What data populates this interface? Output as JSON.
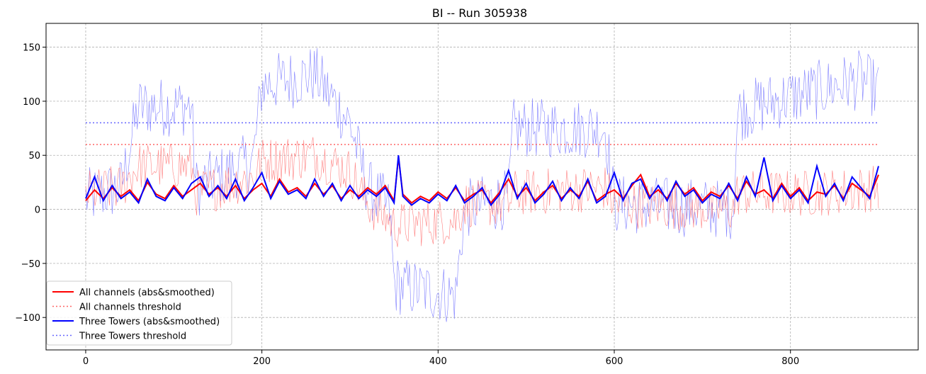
{
  "chart_data": {
    "type": "line",
    "title": "BI -- Run 305938",
    "xlabel": "",
    "ylabel": "",
    "xlim": [
      -45,
      945
    ],
    "ylim": [
      -130,
      172
    ],
    "xticks": [
      0,
      200,
      400,
      600,
      800
    ],
    "yticks": [
      -100,
      -50,
      0,
      50,
      100,
      150
    ],
    "xtick_labels": [
      "0",
      "200",
      "400",
      "600",
      "800"
    ],
    "ytick_labels": [
      "−100",
      "−50",
      "0",
      "50",
      "100",
      "150"
    ],
    "grid": true,
    "legend_position": "lower-left",
    "colors": {
      "all": "#ff0000",
      "all_threshold": "#ff6666",
      "towers": "#0000ff",
      "towers_threshold": "#6666ff",
      "raw_all": "#ff8080",
      "raw_towers": "#8080ff"
    },
    "series": [
      {
        "name": "All channels (abs&smoothed)",
        "style": "solid",
        "x": [
          0,
          10,
          20,
          30,
          40,
          50,
          60,
          70,
          80,
          90,
          100,
          110,
          120,
          130,
          140,
          150,
          160,
          170,
          180,
          190,
          200,
          210,
          220,
          230,
          240,
          250,
          260,
          270,
          280,
          290,
          300,
          310,
          320,
          330,
          340,
          350,
          355,
          360,
          370,
          380,
          390,
          400,
          410,
          420,
          430,
          440,
          450,
          460,
          470,
          480,
          490,
          500,
          510,
          520,
          530,
          540,
          550,
          560,
          570,
          580,
          590,
          600,
          610,
          620,
          630,
          640,
          650,
          660,
          670,
          680,
          690,
          700,
          710,
          720,
          730,
          740,
          750,
          760,
          770,
          780,
          790,
          800,
          810,
          820,
          830,
          840,
          850,
          860,
          870,
          880,
          890,
          900
        ],
        "y": [
          8,
          18,
          10,
          20,
          12,
          18,
          8,
          25,
          14,
          10,
          22,
          12,
          18,
          24,
          14,
          20,
          12,
          22,
          10,
          18,
          24,
          12,
          28,
          16,
          20,
          12,
          24,
          14,
          22,
          10,
          18,
          12,
          20,
          14,
          22,
          8,
          48,
          14,
          6,
          12,
          8,
          16,
          10,
          20,
          8,
          14,
          18,
          6,
          16,
          28,
          12,
          20,
          8,
          16,
          22,
          10,
          18,
          12,
          26,
          8,
          14,
          18,
          10,
          22,
          32,
          12,
          18,
          10,
          24,
          14,
          20,
          8,
          16,
          12,
          22,
          10,
          26,
          14,
          18,
          10,
          24,
          12,
          20,
          8,
          16,
          14,
          22,
          10,
          24,
          18,
          12,
          32
        ]
      },
      {
        "name": "All channels threshold",
        "style": "dotted",
        "x": [
          0,
          900
        ],
        "y": [
          60,
          60
        ]
      },
      {
        "name": "Three Towers (abs&smoothed)",
        "style": "solid",
        "x": [
          0,
          10,
          20,
          30,
          40,
          50,
          60,
          70,
          80,
          90,
          100,
          110,
          120,
          130,
          140,
          150,
          160,
          170,
          180,
          190,
          200,
          210,
          220,
          230,
          240,
          250,
          260,
          270,
          280,
          290,
          300,
          310,
          320,
          330,
          340,
          350,
          355,
          360,
          370,
          380,
          390,
          400,
          410,
          420,
          430,
          440,
          450,
          460,
          470,
          480,
          490,
          500,
          510,
          520,
          530,
          540,
          550,
          560,
          570,
          580,
          590,
          600,
          610,
          620,
          630,
          640,
          650,
          660,
          670,
          680,
          690,
          700,
          710,
          720,
          730,
          740,
          750,
          760,
          770,
          780,
          790,
          800,
          810,
          820,
          830,
          840,
          850,
          860,
          870,
          880,
          890,
          900
        ],
        "y": [
          10,
          30,
          8,
          22,
          10,
          16,
          6,
          28,
          12,
          8,
          20,
          10,
          24,
          30,
          12,
          22,
          10,
          28,
          8,
          20,
          34,
          10,
          26,
          14,
          18,
          10,
          28,
          12,
          24,
          8,
          22,
          10,
          18,
          12,
          20,
          6,
          50,
          12,
          4,
          10,
          6,
          14,
          8,
          22,
          6,
          12,
          20,
          4,
          14,
          36,
          10,
          24,
          6,
          14,
          26,
          8,
          20,
          10,
          28,
          6,
          12,
          34,
          8,
          24,
          28,
          10,
          22,
          8,
          26,
          12,
          18,
          6,
          14,
          10,
          24,
          8,
          30,
          12,
          48,
          8,
          22,
          10,
          18,
          6,
          40,
          12,
          24,
          8,
          30,
          20,
          10,
          40
        ]
      },
      {
        "name": "Three Towers threshold",
        "style": "dotted",
        "x": [
          0,
          900
        ],
        "y": [
          80,
          80
        ]
      }
    ]
  }
}
